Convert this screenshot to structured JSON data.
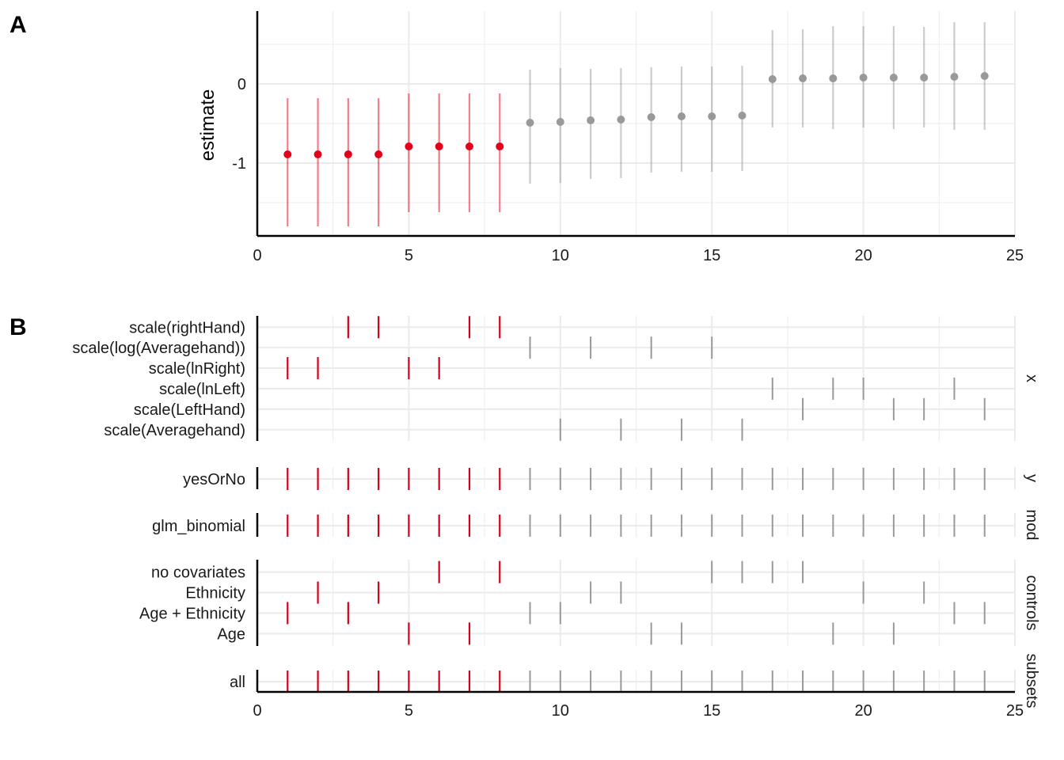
{
  "chart_data": [
    {
      "panel": "A",
      "type": "scatter",
      "ylabel": "estimate",
      "xlim": [
        0,
        25
      ],
      "ylim": [
        -1.92,
        0.92
      ],
      "x_ticks": [
        "0",
        "5",
        "10",
        "15",
        "20",
        "25"
      ],
      "y_ticks": [
        {
          "value": 0,
          "label": "0"
        },
        {
          "value": -1,
          "label": "-1"
        }
      ],
      "grid": true,
      "colors": {
        "highlight": "#e2001a",
        "other": "#999999"
      },
      "points": [
        {
          "x": 1,
          "estimate": -0.89,
          "low": -1.8,
          "high": -0.18,
          "highlight": true
        },
        {
          "x": 2,
          "estimate": -0.89,
          "low": -1.8,
          "high": -0.18,
          "highlight": true
        },
        {
          "x": 3,
          "estimate": -0.89,
          "low": -1.8,
          "high": -0.18,
          "highlight": true
        },
        {
          "x": 4,
          "estimate": -0.89,
          "low": -1.8,
          "high": -0.18,
          "highlight": true
        },
        {
          "x": 5,
          "estimate": -0.79,
          "low": -1.62,
          "high": -0.12,
          "highlight": true
        },
        {
          "x": 6,
          "estimate": -0.79,
          "low": -1.62,
          "high": -0.12,
          "highlight": true
        },
        {
          "x": 7,
          "estimate": -0.79,
          "low": -1.62,
          "high": -0.12,
          "highlight": true
        },
        {
          "x": 8,
          "estimate": -0.79,
          "low": -1.62,
          "high": -0.12,
          "highlight": true
        },
        {
          "x": 9,
          "estimate": -0.49,
          "low": -1.26,
          "high": 0.18,
          "highlight": false
        },
        {
          "x": 10,
          "estimate": -0.48,
          "low": -1.25,
          "high": 0.2,
          "highlight": false
        },
        {
          "x": 11,
          "estimate": -0.46,
          "low": -1.2,
          "high": 0.19,
          "highlight": false
        },
        {
          "x": 12,
          "estimate": -0.45,
          "low": -1.19,
          "high": 0.2,
          "highlight": false
        },
        {
          "x": 13,
          "estimate": -0.42,
          "low": -1.12,
          "high": 0.21,
          "highlight": false
        },
        {
          "x": 14,
          "estimate": -0.41,
          "low": -1.11,
          "high": 0.22,
          "highlight": false
        },
        {
          "x": 15,
          "estimate": -0.41,
          "low": -1.11,
          "high": 0.22,
          "highlight": false
        },
        {
          "x": 16,
          "estimate": -0.4,
          "low": -1.1,
          "high": 0.23,
          "highlight": false
        },
        {
          "x": 17,
          "estimate": 0.06,
          "low": -0.55,
          "high": 0.68,
          "highlight": false
        },
        {
          "x": 18,
          "estimate": 0.07,
          "low": -0.55,
          "high": 0.69,
          "highlight": false
        },
        {
          "x": 19,
          "estimate": 0.07,
          "low": -0.57,
          "high": 0.73,
          "highlight": false
        },
        {
          "x": 20,
          "estimate": 0.08,
          "low": -0.55,
          "high": 0.73,
          "highlight": false
        },
        {
          "x": 21,
          "estimate": 0.08,
          "low": -0.57,
          "high": 0.73,
          "highlight": false
        },
        {
          "x": 22,
          "estimate": 0.08,
          "low": -0.55,
          "high": 0.72,
          "highlight": false
        },
        {
          "x": 23,
          "estimate": 0.09,
          "low": -0.58,
          "high": 0.78,
          "highlight": false
        },
        {
          "x": 24,
          "estimate": 0.1,
          "low": -0.58,
          "high": 0.78,
          "highlight": false
        }
      ]
    },
    {
      "panel": "B",
      "type": "table",
      "xlim": [
        0,
        25
      ],
      "x_ticks": [
        "0",
        "5",
        "10",
        "15",
        "20",
        "25"
      ],
      "highlight_specs": [
        1,
        2,
        3,
        4,
        5,
        6,
        7,
        8
      ],
      "facets": [
        {
          "strip": "x",
          "rows": [
            {
              "label": "scale(rightHand)",
              "specs": [
                3,
                4,
                7,
                8
              ]
            },
            {
              "label": "scale(log(Averagehand))",
              "specs": [
                9,
                11,
                13,
                15
              ]
            },
            {
              "label": "scale(lnRight)",
              "specs": [
                1,
                2,
                5,
                6
              ]
            },
            {
              "label": "scale(lnLeft)",
              "specs": [
                17,
                19,
                20,
                23
              ]
            },
            {
              "label": "scale(LeftHand)",
              "specs": [
                18,
                21,
                22,
                24
              ]
            },
            {
              "label": "scale(Averagehand)",
              "specs": [
                10,
                12,
                14,
                16
              ]
            }
          ]
        },
        {
          "strip": "y",
          "rows": [
            {
              "label": "yesOrNo",
              "specs": [
                1,
                2,
                3,
                4,
                5,
                6,
                7,
                8,
                9,
                10,
                11,
                12,
                13,
                14,
                15,
                16,
                17,
                18,
                19,
                20,
                21,
                22,
                23,
                24
              ]
            }
          ]
        },
        {
          "strip": "mod",
          "rows": [
            {
              "label": "glm_binomial",
              "specs": [
                1,
                2,
                3,
                4,
                5,
                6,
                7,
                8,
                9,
                10,
                11,
                12,
                13,
                14,
                15,
                16,
                17,
                18,
                19,
                20,
                21,
                22,
                23,
                24
              ]
            }
          ]
        },
        {
          "strip": "controls",
          "rows": [
            {
              "label": "no covariates",
              "specs": [
                6,
                8,
                15,
                16,
                17,
                18
              ]
            },
            {
              "label": "Ethnicity",
              "specs": [
                2,
                4,
                11,
                12,
                20,
                22
              ]
            },
            {
              "label": "Age + Ethnicity",
              "specs": [
                1,
                3,
                9,
                10,
                23,
                24
              ]
            },
            {
              "label": "Age",
              "specs": [
                5,
                7,
                13,
                14,
                19,
                21
              ]
            }
          ]
        },
        {
          "strip": "subsets",
          "rows": [
            {
              "label": "all",
              "specs": [
                1,
                2,
                3,
                4,
                5,
                6,
                7,
                8,
                9,
                10,
                11,
                12,
                13,
                14,
                15,
                16,
                17,
                18,
                19,
                20,
                21,
                22,
                23,
                24
              ]
            }
          ]
        }
      ]
    }
  ],
  "panel_tags": {
    "a": "A",
    "b": "B"
  }
}
